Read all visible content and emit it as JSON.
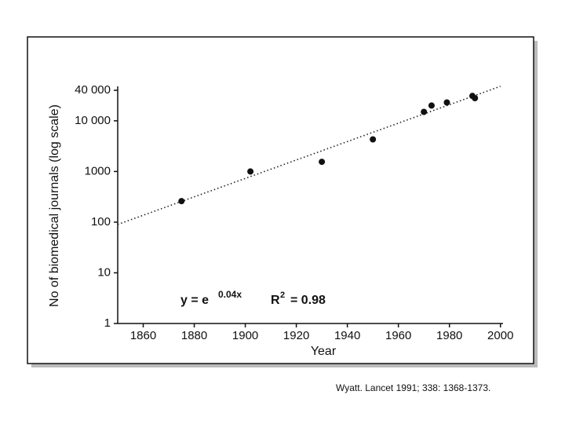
{
  "chart_data": {
    "type": "scatter",
    "ylabel": "No of biomedical journals (log scale)",
    "xlabel": "Year",
    "x": [
      1875,
      1902,
      1930,
      1950,
      1970,
      1973,
      1979,
      1989,
      1990
    ],
    "values": [
      260,
      1000,
      1550,
      4300,
      15000,
      20000,
      23000,
      31000,
      28000
    ],
    "color": "#111111",
    "trendline": {
      "x": [
        1850,
        2000
      ],
      "values": [
        90,
        48000
      ]
    },
    "annotation": [
      "y = e",
      "0.04x",
      "R",
      "2",
      "= 0.98"
    ],
    "xlim": [
      1850,
      2001
    ],
    "xticks": [
      1860,
      1880,
      1900,
      1920,
      1940,
      1960,
      1980,
      2000
    ],
    "ylim": [
      1,
      40000
    ],
    "yscale": "log",
    "yticks": [
      1,
      10,
      100,
      1000,
      {
        "value": 10000,
        "label": "10 000"
      },
      {
        "value": 40000,
        "label": "40 000"
      }
    ]
  },
  "caption": "Wyatt. Lancet 1991; 338: 1368-1373."
}
